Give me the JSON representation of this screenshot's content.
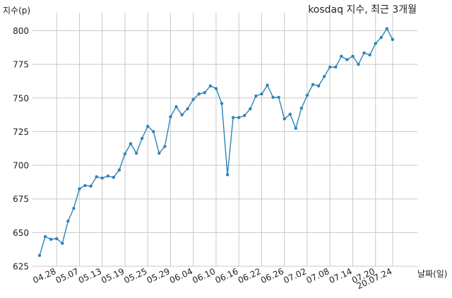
{
  "chart_data": {
    "type": "line",
    "title": "kosdaq 지수, 최근 3개월",
    "ylabel": "지수(p)",
    "xlabel": "날짜(일)",
    "ylim": [
      625,
      810
    ],
    "yticks": [
      625,
      650,
      675,
      700,
      725,
      750,
      775,
      800
    ],
    "xtick_labels": [
      "04.28",
      "05.07",
      "05.13",
      "05.19",
      "05.25",
      "05.29",
      "06.04",
      "06.10",
      "06.16",
      "06.22",
      "06.26",
      "07.02",
      "07.08",
      "07.14",
      "07.20",
      "20.07.24"
    ],
    "xtick_positions": [
      3,
      7,
      11,
      15,
      19,
      23,
      27,
      31,
      35,
      39,
      43,
      47,
      51,
      55,
      59,
      62
    ],
    "grid": true,
    "legend": "none",
    "line_color": "#2e83b7",
    "series": [
      {
        "x": [
          0,
          1,
          2,
          3,
          4,
          5,
          6,
          7,
          8,
          9,
          10,
          11,
          12,
          13,
          14,
          15,
          16,
          17,
          18,
          19,
          20,
          21,
          22,
          23,
          24,
          25,
          26,
          27,
          28,
          29,
          30,
          31,
          32,
          33,
          34,
          35,
          36,
          37,
          38,
          39,
          40,
          41,
          42,
          43,
          44,
          45,
          46,
          47,
          48,
          49,
          50,
          51,
          52,
          53,
          54,
          55,
          56,
          57,
          58,
          59,
          60,
          61,
          62
        ],
        "values": [
          633,
          647,
          645,
          645.5,
          642,
          658.5,
          668,
          682.5,
          685,
          684.5,
          691.5,
          690.5,
          692,
          691,
          696.5,
          708.5,
          716,
          709,
          720,
          729,
          725,
          709,
          714,
          736,
          743.5,
          737.5,
          742,
          749,
          753,
          754,
          759,
          757,
          746,
          693,
          735.5,
          735.5,
          737,
          742,
          751.5,
          753,
          759.5,
          750.5,
          750.5,
          734.5,
          738,
          727.5,
          742.5,
          752,
          760,
          759,
          766,
          773,
          773,
          781,
          778.5,
          781,
          775,
          783.5,
          782,
          790.5,
          795,
          801.5,
          793.5
        ]
      }
    ]
  }
}
